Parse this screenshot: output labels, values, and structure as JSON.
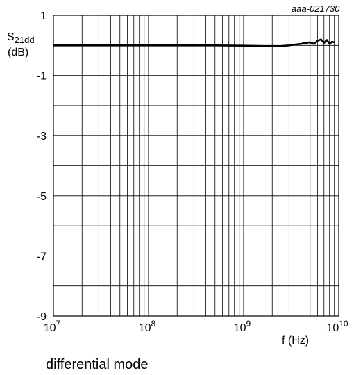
{
  "figure": {
    "code": "aaa-021730",
    "caption": "differential mode"
  },
  "chart_data": {
    "type": "line",
    "title": "",
    "xlabel": "f (Hz)",
    "ylabel": "S21dd",
    "ylabel_main": "S",
    "ylabel_sub": "21dd",
    "ylabel_unit": "(dB)",
    "xscale": "log",
    "xlim": [
      10000000,
      10000000000
    ],
    "ylim": [
      -9,
      1
    ],
    "grid": true,
    "x_tick_labels": [
      {
        "value": 10000000,
        "base": "10",
        "exp": "7"
      },
      {
        "value": 100000000,
        "base": "10",
        "exp": "8"
      },
      {
        "value": 1000000000,
        "base": "10",
        "exp": "9"
      },
      {
        "value": 10000000000,
        "base": "10",
        "exp": "10"
      }
    ],
    "y_tick_labels": [
      "1",
      "-1",
      "-3",
      "-5",
      "-7",
      "-9"
    ],
    "y_tick_values": [
      1,
      -1,
      -3,
      -5,
      -7,
      -9
    ],
    "series": [
      {
        "color": "#000000",
        "x": [
          10000000,
          20000000,
          50000000,
          100000000,
          200000000,
          500000000,
          1000000000,
          1500000000,
          2000000000,
          2500000000,
          3000000000,
          3500000000,
          4000000000,
          4500000000,
          5000000000,
          5500000000,
          6000000000,
          6500000000,
          7000000000,
          7500000000,
          8000000000,
          8500000000,
          9000000000
        ],
        "y": [
          0,
          0,
          0,
          0,
          0,
          0,
          -0.01,
          -0.02,
          -0.03,
          -0.02,
          0.0,
          0.03,
          0.05,
          0.08,
          0.1,
          0.05,
          0.15,
          0.2,
          0.08,
          0.18,
          0.05,
          0.12,
          0.1
        ]
      }
    ]
  }
}
